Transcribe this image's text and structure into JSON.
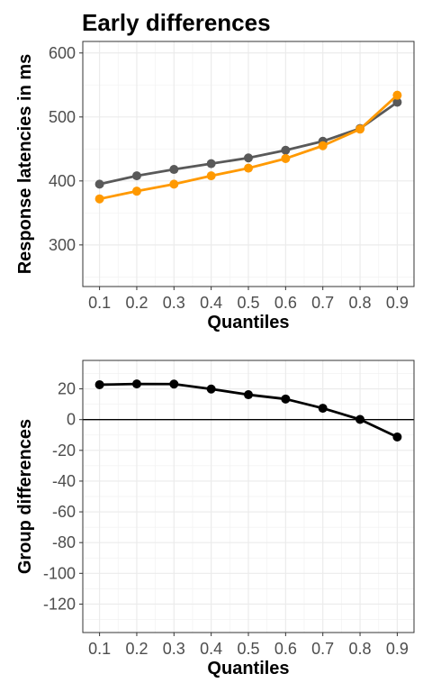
{
  "title": "Early differences",
  "chart_data": [
    {
      "type": "line",
      "xlabel": "Quantiles",
      "ylabel": "Response latencies in ms",
      "x": [
        0.1,
        0.2,
        0.3,
        0.4,
        0.5,
        0.6,
        0.7,
        0.8,
        0.9
      ],
      "x_tick_labels": [
        "0.1",
        "0.2",
        "0.3",
        "0.4",
        "0.5",
        "0.6",
        "0.7",
        "0.8",
        "0.9"
      ],
      "y_ticks": [
        300,
        400,
        500,
        600
      ],
      "y_tick_labels": [
        "300",
        "400",
        "500",
        "600"
      ],
      "xlim": [
        0.055,
        0.945
      ],
      "ylim": [
        235,
        618
      ],
      "grid": true,
      "series": [
        {
          "color": "#595959",
          "values": [
            395,
            408,
            418,
            427,
            436,
            448,
            462,
            482,
            523
          ]
        },
        {
          "color": "#ff9900",
          "values": [
            372,
            384,
            395,
            408,
            420,
            435,
            455,
            481,
            534
          ]
        }
      ]
    },
    {
      "type": "line",
      "xlabel": "Quantiles",
      "ylabel": "Group differences",
      "x": [
        0.1,
        0.2,
        0.3,
        0.4,
        0.5,
        0.6,
        0.7,
        0.8,
        0.9
      ],
      "x_tick_labels": [
        "0.1",
        "0.2",
        "0.3",
        "0.4",
        "0.5",
        "0.6",
        "0.7",
        "0.8",
        "0.9"
      ],
      "y_ticks": [
        -120,
        -100,
        -80,
        -60,
        -40,
        -20,
        0,
        20
      ],
      "y_tick_labels": [
        "-120",
        "-100",
        "-80",
        "-60",
        "-40",
        "-20",
        "0",
        "20"
      ],
      "xlim": [
        0.055,
        0.945
      ],
      "ylim": [
        -138.5,
        38.5
      ],
      "grid": true,
      "reference_line": 0,
      "series": [
        {
          "color": "#000000",
          "values": [
            22.7,
            23.2,
            23.1,
            19.9,
            16.2,
            13.4,
            7.4,
            0.1,
            -11.3
          ]
        }
      ]
    }
  ]
}
